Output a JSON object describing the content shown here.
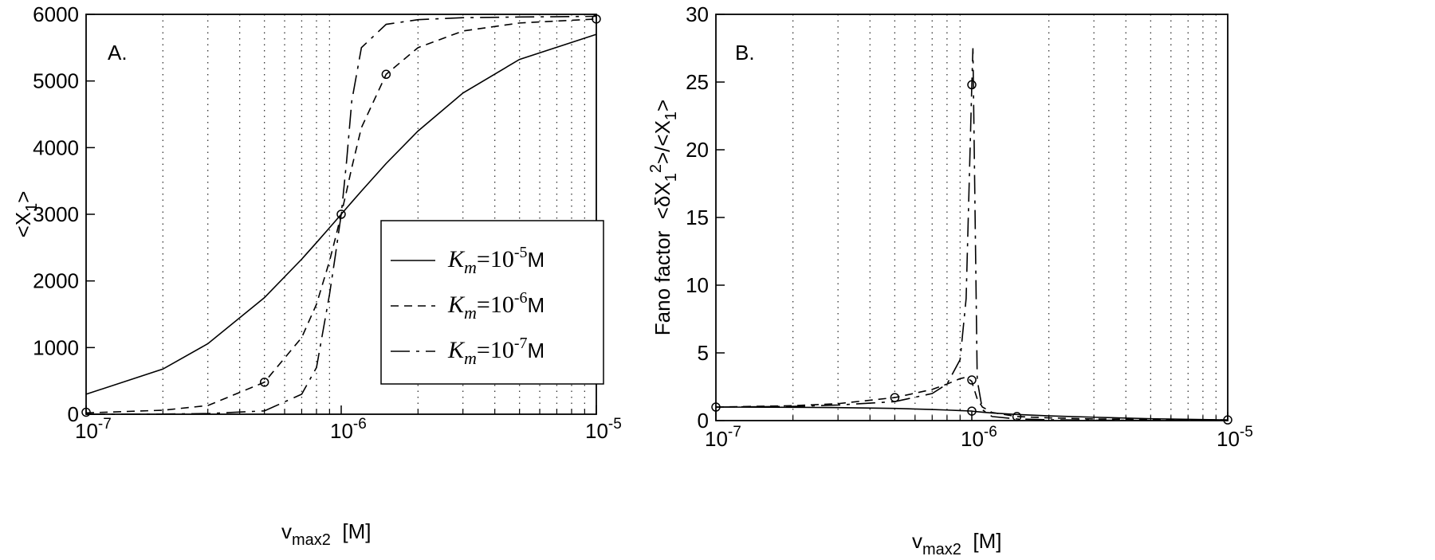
{
  "chart_data": [
    {
      "type": "line",
      "xscale": "log",
      "grid": "x-minor",
      "legend": "lower right",
      "annotation": "A.",
      "xlabel": [
        {
          "text": "v"
        },
        {
          "text": "max2",
          "shift": "sub"
        },
        {
          "text": "  [M]"
        }
      ],
      "ylabel": [
        {
          "text": "<X"
        },
        {
          "text": "1",
          "shift": "sub"
        },
        {
          "text": ">"
        }
      ],
      "x": [
        1e-07,
        2e-07,
        3e-07,
        5e-07,
        7e-07,
        8e-07,
        9e-07,
        9.5e-07,
        1e-06,
        1.01e-06,
        1.05e-06,
        1.1e-06,
        1.2e-06,
        1.5e-06,
        2e-06,
        3e-06,
        5e-06,
        1e-05
      ],
      "series": [
        {
          "name": "Km=10-5M",
          "color": "#000000",
          "dash": "solid",
          "values": [
            300,
            678,
            1058,
            1749,
            2326,
            2575,
            2798,
            2901,
            3000,
            3019,
            3094,
            3183,
            3348,
            3762,
            4249,
            4819,
            5324,
            5700
          ]
        },
        {
          "name": "Km=10-6M",
          "color": "#000000",
          "dash": "dashed",
          "values": [
            20,
            60,
            130,
            480,
            1150,
            1650,
            2300,
            2650,
            3000,
            3070,
            3350,
            3700,
            4300,
            5100,
            5500,
            5750,
            5870,
            5930
          ]
        },
        {
          "name": "Km=10-7M",
          "color": "#000000",
          "dash": "dashdot",
          "values": [
            0,
            3,
            10,
            50,
            300,
            700,
            1800,
            2400,
            3000,
            3160,
            3800,
            4700,
            5500,
            5850,
            5920,
            5950,
            5960,
            5970
          ]
        }
      ],
      "markers": {
        "x": [
          1e-07,
          5e-07,
          1e-06,
          1.5e-06,
          1e-05
        ],
        "values": [
          30,
          480,
          3000,
          5100,
          5930
        ]
      },
      "xlim": [
        1e-07,
        1e-05
      ],
      "xticks": [
        {
          "value": 1e-07,
          "label": "10-7"
        },
        {
          "value": 1e-06,
          "label": "10-6"
        },
        {
          "value": 1e-05,
          "label": "10-5"
        }
      ],
      "xminorticks": [
        2e-07,
        3e-07,
        4e-07,
        5e-07,
        6e-07,
        7e-07,
        8e-07,
        9e-07,
        2e-06,
        3e-06,
        4e-06,
        5e-06,
        6e-06,
        7e-06,
        8e-06,
        9e-06
      ],
      "ylim": [
        0,
        6000
      ],
      "yticks": [
        0,
        1000,
        2000,
        3000,
        4000,
        5000,
        6000
      ]
    },
    {
      "type": "line",
      "xscale": "log",
      "grid": "x-minor",
      "annotation": "B.",
      "xlabel": [
        {
          "text": "v"
        },
        {
          "text": "max2",
          "shift": "sub"
        },
        {
          "text": "  [M]"
        }
      ],
      "ylabel": [
        {
          "text": "Fano factor  <δX"
        },
        {
          "text": "1",
          "shift": "sub"
        },
        {
          "text": "2",
          "shift": "sup"
        },
        {
          "text": ">/<X"
        },
        {
          "text": "1",
          "shift": "sub"
        },
        {
          "text": ">"
        }
      ],
      "x": [
        1e-07,
        2e-07,
        3e-07,
        5e-07,
        7e-07,
        8e-07,
        9e-07,
        9.5e-07,
        1e-06,
        1.01e-06,
        1.05e-06,
        1.1e-06,
        1.2e-06,
        1.5e-06,
        2e-06,
        3e-06,
        5e-06,
        1e-05
      ],
      "series": [
        {
          "color": "#000000",
          "dash": "solid",
          "values": [
            1.0,
            0.98,
            0.96,
            0.9,
            0.82,
            0.78,
            0.74,
            0.72,
            0.7,
            0.69,
            0.66,
            0.62,
            0.56,
            0.45,
            0.35,
            0.25,
            0.14,
            0.05
          ]
        },
        {
          "color": "#000000",
          "dash": "dashed",
          "values": [
            1.0,
            1.1,
            1.25,
            1.7,
            2.3,
            2.7,
            3.1,
            3.2,
            2.9,
            2.6,
            1.6,
            1.0,
            0.6,
            0.3,
            0.2,
            0.12,
            0.08,
            0.05
          ]
        },
        {
          "color": "#000000",
          "dash": "dashdot",
          "values": [
            1.0,
            1.05,
            1.15,
            1.4,
            2.0,
            2.7,
            4.5,
            9,
            24.8,
            27.5,
            3,
            0.8,
            0.3,
            0.12,
            0.06,
            0.03,
            0.02,
            0.01
          ]
        }
      ],
      "markers": {
        "x": [
          1e-07,
          5e-07,
          1e-06,
          1e-06,
          1e-06,
          1.5e-06,
          1e-05
        ],
        "values": [
          1.0,
          1.7,
          0.7,
          3.0,
          24.8,
          0.3,
          0.05
        ]
      },
      "xlim": [
        1e-07,
        1e-05
      ],
      "xticks": [
        {
          "value": 1e-07,
          "label": "10-7"
        },
        {
          "value": 1e-06,
          "label": "10-6"
        },
        {
          "value": 1e-05,
          "label": "10-5"
        }
      ],
      "xminorticks": [
        2e-07,
        3e-07,
        4e-07,
        5e-07,
        6e-07,
        7e-07,
        8e-07,
        9e-07,
        2e-06,
        3e-06,
        4e-06,
        5e-06,
        6e-06,
        7e-06,
        8e-06,
        9e-06
      ],
      "ylim": [
        0,
        30
      ],
      "yticks": [
        0,
        5,
        10,
        15,
        20,
        25,
        30
      ]
    }
  ]
}
